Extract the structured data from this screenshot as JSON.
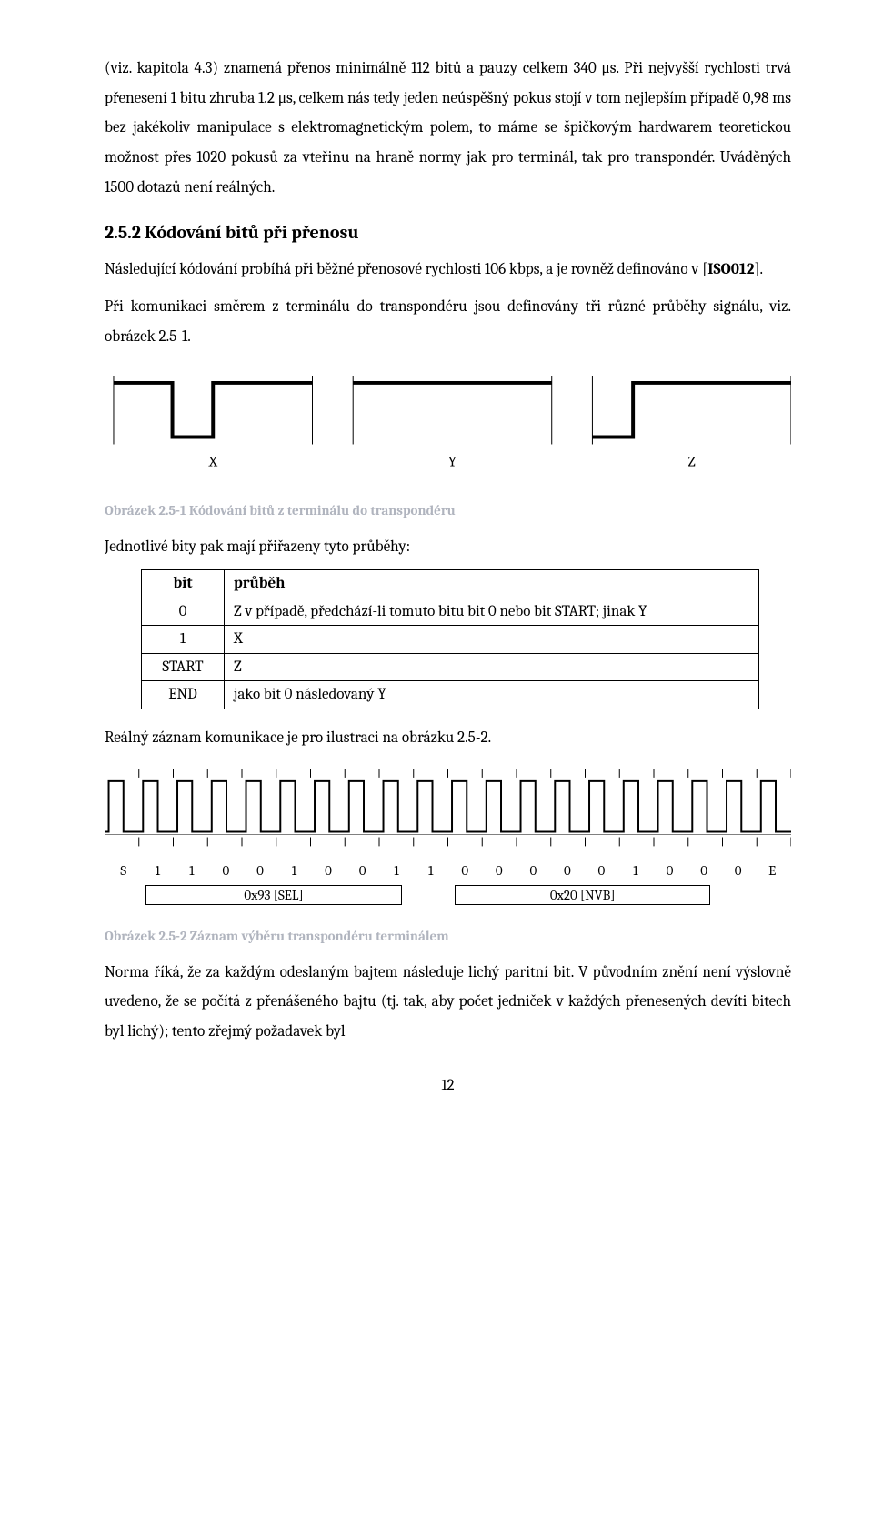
{
  "para1": "(viz. kapitola 4.3) znamená přenos minimálně 112 bitů a pauzy celkem 340 μs. Při nejvyšší rychlosti trvá přenesení 1 bitu zhruba 1.2 μs, celkem nás tedy jeden neúspěšný pokus stojí v tom nejlepším případě 0,98 ms bez jakékoliv manipulace s elektromagnetickým polem, to máme se špičkovým hardwarem teoretickou možnost přes 1020 pokusů za vteřinu na hraně normy jak pro terminál, tak pro transpondér. Uváděných 1500 dotazů není reálných.",
  "heading": "2.5.2   Kódování bitů při přenosu",
  "para2a": "Následující kódování probíhá při běžné přenosové rychlosti 106 kbps, a je rovněž definováno v [",
  "iso": "ISO012",
  "para2b": "].",
  "para3": "Při komunikaci směrem z terminálu do transpondéru jsou definovány tři různé průběhy signálu, viz. obrázek 2.5-1.",
  "xyz": {
    "X": "X",
    "Y": "Y",
    "Z": "Z"
  },
  "caption1": "Obrázek 2.5-1 Kódování bitů z terminálu do transpondéru",
  "para4": "Jednotlivé bity pak mají přiřazeny tyto průběhy:",
  "table": {
    "h1": "bit",
    "h2": "průběh",
    "r0a": "0",
    "r0b": "Z v případě, předchází-li tomuto bitu bit 0 nebo bit START; jinak Y",
    "r1a": "1",
    "r1b": "X",
    "r2a": "START",
    "r2b": "Z",
    "r3a": "END",
    "r3b": "jako bit 0 následovaný Y"
  },
  "para5": "Reálný záznam komunikace je pro ilustraci na obrázku 2.5-2.",
  "bits": [
    "S",
    "1",
    "1",
    "0",
    "0",
    "1",
    "0",
    "0",
    "1",
    "1",
    "0",
    "0",
    "0",
    "0",
    "0",
    "1",
    "0",
    "0",
    "0",
    "E"
  ],
  "byte1": "0x93 [SEL]",
  "byte2": "0x20 [NVB]",
  "caption2": "Obrázek 2.5-2 Záznam výběru transpondéru terminálem",
  "para6": "Norma říká, že za každým odeslaným bajtem následuje lichý paritní bit. V původním znění není výslovně uvedeno, že se počítá z přenášeného bajtu (tj. tak, aby počet jedniček v každých přenesených devíti bitech byl lichý); tento zřejmý požadavek byl",
  "pagenum": "12"
}
